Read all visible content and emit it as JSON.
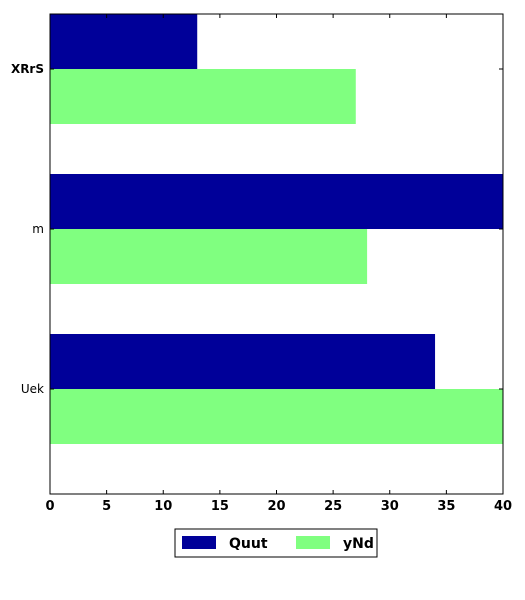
{
  "chart_data": {
    "type": "bar",
    "orientation": "horizontal",
    "categories": [
      "XRrS",
      "m",
      "Uek"
    ],
    "series": [
      {
        "name": "Quut",
        "color": "#000099",
        "values": [
          13,
          40,
          34
        ]
      },
      {
        "name": "yNd",
        "color": "#80ff80",
        "values": [
          27,
          28,
          40
        ]
      }
    ],
    "xlim": [
      0,
      40
    ],
    "xticks": [
      0,
      5,
      10,
      15,
      20,
      25,
      30,
      35,
      40
    ],
    "grid": false,
    "legend_position": "bottom-center"
  }
}
